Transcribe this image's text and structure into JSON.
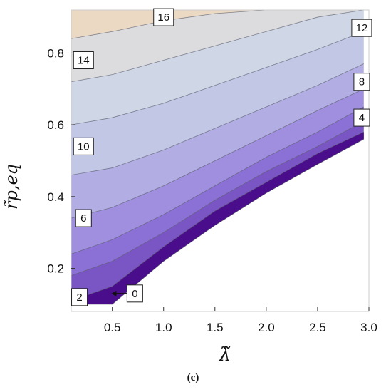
{
  "chart_data": {
    "type": "contour",
    "xlabel": "λ̃",
    "ylabel": "r̃p,eq",
    "xlim": [
      0.1,
      3.0
    ],
    "ylim": [
      0.08,
      0.92
    ],
    "x_ticks": [
      "0.5",
      "1.0",
      "1.5",
      "2.0",
      "2.5",
      "3.0"
    ],
    "y_ticks": [
      "0.2",
      "0.4",
      "0.6",
      "0.8"
    ],
    "contour_levels": [
      0,
      2,
      4,
      6,
      8,
      10,
      12,
      14,
      16
    ],
    "contour_lines": [
      {
        "level": 0,
        "x": [
          0.1,
          0.5,
          1.0,
          1.5,
          2.0,
          2.5,
          2.95
        ],
        "y": [
          0.1,
          0.1,
          0.22,
          0.32,
          0.41,
          0.49,
          0.56
        ]
      },
      {
        "level": 2,
        "x": [
          0.1,
          0.5,
          1.0,
          1.5,
          2.0,
          2.5,
          2.95
        ],
        "y": [
          0.11,
          0.15,
          0.26,
          0.36,
          0.44,
          0.52,
          0.58
        ]
      },
      {
        "level": 4,
        "x": [
          0.1,
          0.5,
          1.0,
          1.5,
          2.0,
          2.5,
          2.95
        ],
        "y": [
          0.18,
          0.22,
          0.3,
          0.39,
          0.47,
          0.54,
          0.61
        ]
      },
      {
        "level": 6,
        "x": [
          0.1,
          0.5,
          1.0,
          1.5,
          2.0,
          2.5,
          2.95
        ],
        "y": [
          0.24,
          0.28,
          0.35,
          0.43,
          0.51,
          0.58,
          0.65
        ]
      },
      {
        "level": 8,
        "x": [
          0.1,
          0.5,
          1.0,
          1.5,
          2.0,
          2.5,
          2.95
        ],
        "y": [
          0.34,
          0.37,
          0.43,
          0.5,
          0.57,
          0.64,
          0.7
        ]
      },
      {
        "level": 10,
        "x": [
          0.1,
          0.5,
          1.0,
          1.5,
          2.0,
          2.5,
          2.95
        ],
        "y": [
          0.46,
          0.48,
          0.53,
          0.59,
          0.65,
          0.71,
          0.77
        ]
      },
      {
        "level": 12,
        "x": [
          0.1,
          0.5,
          1.0,
          1.5,
          2.0,
          2.5,
          2.95
        ],
        "y": [
          0.6,
          0.62,
          0.66,
          0.71,
          0.76,
          0.81,
          0.86
        ]
      },
      {
        "level": 14,
        "x": [
          0.1,
          0.5,
          1.0,
          1.5,
          2.0,
          2.5,
          2.95
        ],
        "y": [
          0.72,
          0.74,
          0.78,
          0.82,
          0.86,
          0.9,
          0.92
        ]
      },
      {
        "level": 16,
        "x": [
          0.1,
          0.5,
          1.0,
          1.5,
          2.0,
          2.2
        ],
        "y": [
          0.84,
          0.86,
          0.89,
          0.91,
          0.92,
          0.92
        ]
      }
    ],
    "contour_labels": [
      {
        "text": "16",
        "x": 1.0,
        "y": 0.9
      },
      {
        "text": "12",
        "x": 2.93,
        "y": 0.87
      },
      {
        "text": "14",
        "x": 0.22,
        "y": 0.78
      },
      {
        "text": "8",
        "x": 2.93,
        "y": 0.72
      },
      {
        "text": "4",
        "x": 2.93,
        "y": 0.62
      },
      {
        "text": "10",
        "x": 0.22,
        "y": 0.54
      },
      {
        "text": "6",
        "x": 0.22,
        "y": 0.34
      },
      {
        "text": "0",
        "x": 0.72,
        "y": 0.13
      },
      {
        "text": "2",
        "x": 0.18,
        "y": 0.12
      }
    ],
    "band_colors": [
      "#4a0d8c",
      "#6a3ea8",
      "#7a55c4",
      "#8b70d6",
      "#9f8fde",
      "#b2aee3",
      "#c2c7e6",
      "#cfd6e6",
      "#dcdbdd",
      "#ecd9c4"
    ],
    "caption": "(c)"
  }
}
